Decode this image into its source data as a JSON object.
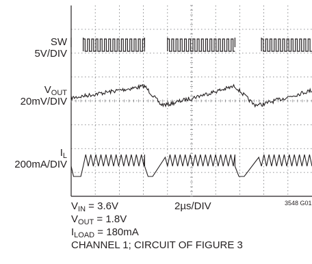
{
  "chart_data": {
    "type": "line",
    "traces": [
      {
        "name_main": "SW",
        "name_sub": "",
        "scale": "5V/DIV"
      },
      {
        "name_main": "V",
        "name_sub": "OUT",
        "scale": "20mV/DIV"
      },
      {
        "name_main": "I",
        "name_sub": "L",
        "scale": "200mA/DIV"
      }
    ],
    "timebase": "2µs/DIV",
    "grid_divisions": {
      "x": 10,
      "y": 8
    },
    "conditions": [
      {
        "main": "V",
        "sub": "IN",
        "rest": " = 3.6V"
      },
      {
        "main": "V",
        "sub": "OUT",
        "rest": " = 1.8V"
      },
      {
        "main": "I",
        "sub": "LOAD",
        "rest": " = 180mA"
      },
      {
        "main": "CHANNEL 1; CIRCUIT OF FIGURE 3",
        "sub": "",
        "rest": ""
      }
    ],
    "figure_code": "3548 G01",
    "burst_start_div": [
      0.0,
      3.05,
      6.8
    ],
    "burst_end_div": [
      0.5,
      4.0,
      7.9
    ],
    "colors": {
      "grid": "#6d6e71",
      "trace": "#231f20",
      "frame": "#231f20"
    }
  }
}
